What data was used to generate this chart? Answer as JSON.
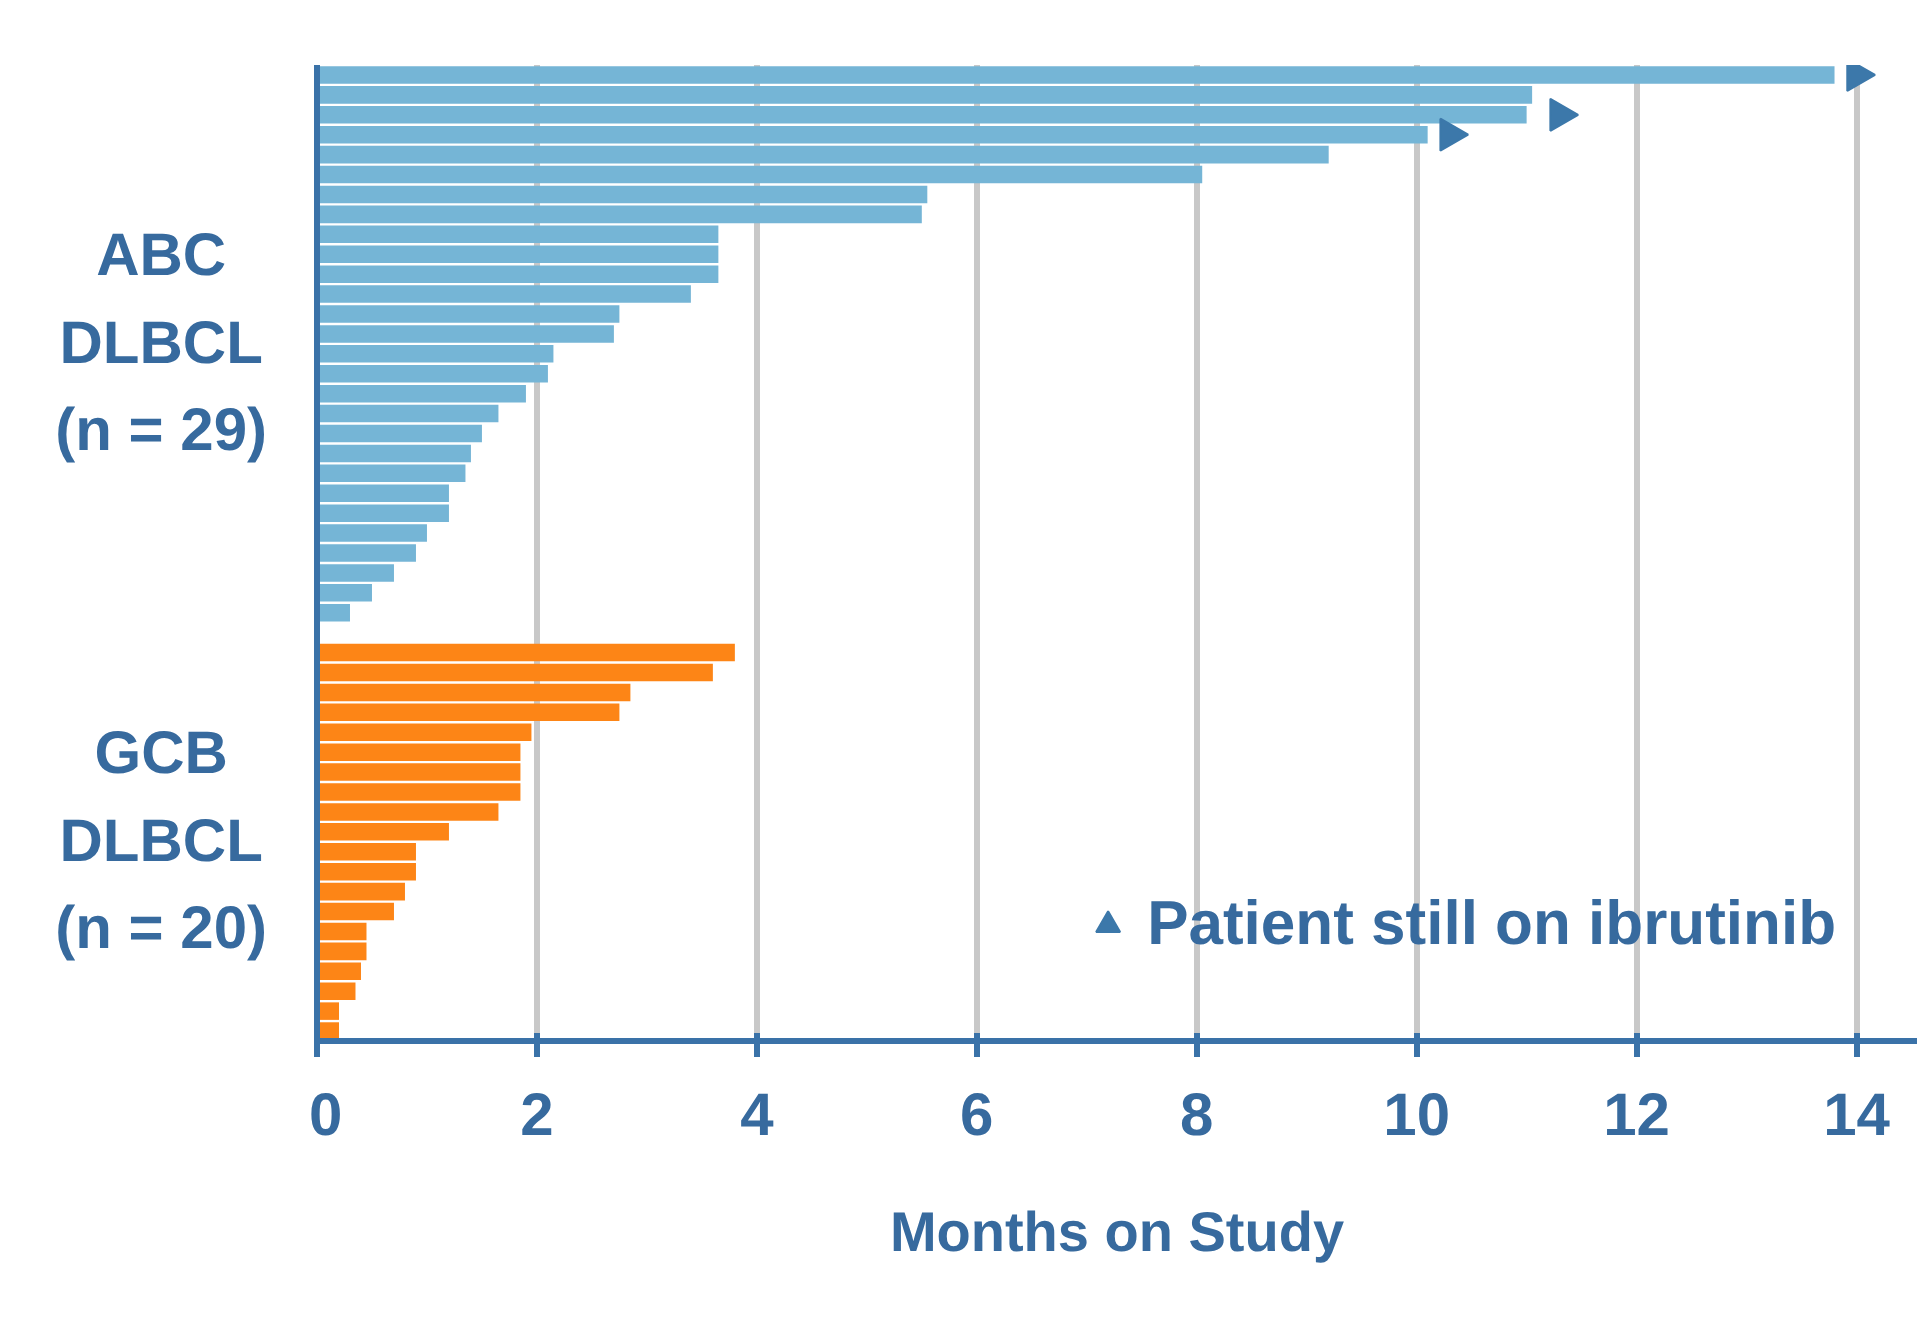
{
  "chart_data": {
    "type": "bar",
    "orientation": "horizontal",
    "xlabel": "Months on Study",
    "categories": [
      null,
      null,
      null,
      null,
      null,
      null,
      null,
      null,
      null,
      null,
      null,
      null,
      null,
      null,
      null,
      null,
      null,
      null,
      null,
      null,
      null,
      null,
      null,
      null,
      null,
      null,
      null,
      null,
      null,
      null,
      null,
      null,
      null,
      null,
      null,
      null,
      null,
      null,
      null,
      null,
      null,
      null,
      null,
      null,
      null,
      null,
      null,
      null,
      null
    ],
    "series": [
      {
        "color": "#75b5d6",
        "values": [
          13.8,
          11.05,
          11.0,
          10.1,
          9.2,
          8.05,
          5.55,
          5.5,
          3.65,
          3.65,
          3.65,
          3.4,
          2.75,
          2.7,
          2.15,
          2.1,
          1.9,
          1.65,
          1.5,
          1.4,
          1.35,
          1.2,
          1.2,
          1.0,
          0.9,
          0.7,
          0.5,
          0.3,
          null,
          null,
          null,
          null,
          null,
          null,
          null,
          null,
          null,
          null,
          null,
          null,
          null,
          null,
          null,
          null,
          null,
          null,
          null,
          null,
          null
        ]
      },
      {
        "color": "#fd8516",
        "values": [
          null,
          null,
          null,
          null,
          null,
          null,
          null,
          null,
          null,
          null,
          null,
          null,
          null,
          null,
          null,
          null,
          null,
          null,
          null,
          null,
          null,
          null,
          null,
          null,
          null,
          null,
          null,
          null,
          null,
          3.8,
          3.6,
          2.85,
          2.75,
          1.95,
          1.85,
          1.85,
          1.85,
          1.65,
          1.2,
          0.9,
          0.9,
          0.8,
          0.7,
          0.45,
          0.45,
          0.4,
          0.35,
          0.2,
          0.2
        ]
      },
      {
        "type": "scatter",
        "name": "Patient still on ibrutinib",
        "color": "#3c78aa",
        "values": [
          14.0,
          null,
          11.3,
          10.3,
          null,
          null,
          null,
          null,
          null,
          null,
          null,
          null,
          null,
          null,
          null,
          null,
          null,
          null,
          null,
          null,
          null,
          null,
          null,
          null,
          null,
          null,
          null,
          null,
          null,
          null,
          null,
          null,
          null,
          null,
          null,
          null,
          null,
          null,
          null,
          null,
          null,
          null,
          null,
          null,
          null,
          null,
          null,
          null,
          null
        ]
      }
    ],
    "marker": "triangle",
    "legend": "bottom right",
    "xlim": [
      0,
      14.55
    ],
    "xticks": [
      0,
      2,
      4,
      6,
      8,
      10,
      12,
      14
    ],
    "grid": "x",
    "tick_labels": "x",
    "annotations": [
      "ABC\nDLBCL\n(n = 29)",
      "GCB\nDLBCL\n(n = 20)"
    ]
  }
}
